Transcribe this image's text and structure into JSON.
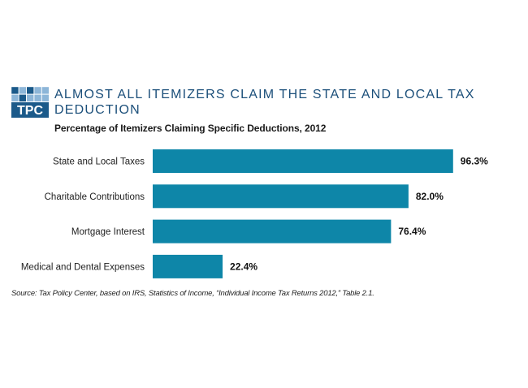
{
  "logo": {
    "text": "TPC",
    "colors": {
      "dark": "#1b5a8a",
      "light": "#8db6d8",
      "text": "#ffffff"
    }
  },
  "title": "ALMOST ALL ITEMIZERS CLAIM THE STATE AND LOCAL TAX DEDUCTION",
  "subtitle": "Percentage of Itemizers Claiming Specific Deductions, 2012",
  "source": "Source: Tax Policy Center, based on IRS, Statistics of Income, “Individual Income Tax Returns 2012,” Table 2.1.",
  "chart_data": {
    "type": "bar",
    "orientation": "horizontal",
    "categories": [
      "State and Local Taxes",
      "Charitable Contributions",
      "Mortgage Interest",
      "Medical and Dental Expenses"
    ],
    "values": [
      96.3,
      82.0,
      76.4,
      22.4
    ],
    "value_labels": [
      "96.3%",
      "82.0%",
      "76.4%",
      "22.4%"
    ],
    "xlim": [
      0,
      100
    ],
    "grid": false,
    "legend": "none",
    "bar_color": "#0e86a8"
  }
}
